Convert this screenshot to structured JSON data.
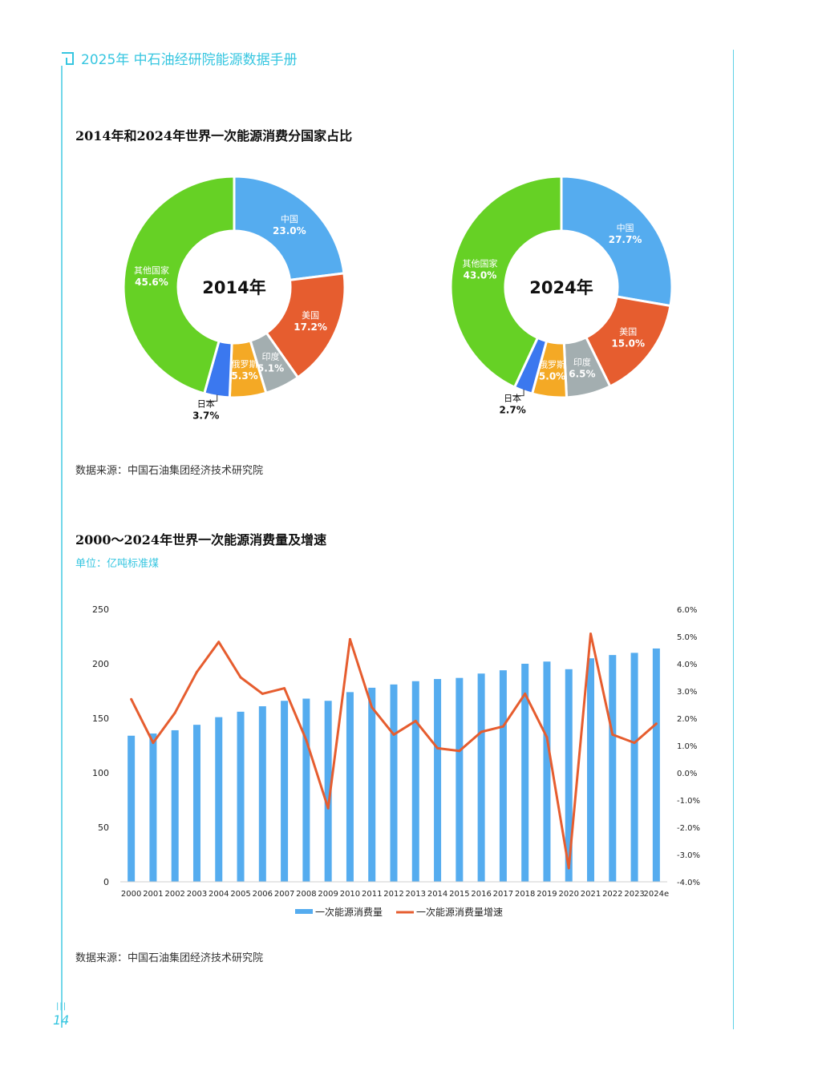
{
  "header": {
    "title": "2025年 中石油经研院能源数据手册"
  },
  "page_number": "14",
  "page_marks": "|||",
  "section1": {
    "title": "2014年和2024年世界一次能源消费分国家占比",
    "source": "数据来源：中国石油集团经济技术研究院"
  },
  "section2": {
    "title": "2000～2024年世界一次能源消费量及增速",
    "unit": "单位：亿吨标准煤",
    "source": "数据来源：中国石油集团经济技术研究院"
  },
  "chart_data": [
    {
      "type": "pie",
      "variant": "donut",
      "center_label": "2014年",
      "labels": [
        "中国",
        "美国",
        "印度",
        "俄罗斯",
        "日本",
        "其他国家"
      ],
      "value_labels": [
        "23.0%",
        "17.2%",
        "5.1%",
        "5.3%",
        "3.7%",
        "45.6%"
      ],
      "values": [
        23.0,
        17.2,
        5.1,
        5.3,
        3.7,
        45.6
      ],
      "colors": [
        "#55acef",
        "#e65d2f",
        "#a3aeb0",
        "#f4a925",
        "#3b78ef",
        "#66d125"
      ]
    },
    {
      "type": "pie",
      "variant": "donut",
      "center_label": "2024年",
      "labels": [
        "中国",
        "美国",
        "印度",
        "俄罗斯",
        "日本",
        "其他国家"
      ],
      "value_labels": [
        "27.7%",
        "15.0%",
        "6.5%",
        "5.0%",
        "2.7%",
        "43.0%"
      ],
      "values": [
        27.7,
        15.0,
        6.5,
        5.0,
        2.7,
        43.0
      ],
      "colors": [
        "#55acef",
        "#e65d2f",
        "#a3aeb0",
        "#f4a925",
        "#3b78ef",
        "#66d125"
      ]
    },
    {
      "type": "bar",
      "combo": "bar+line",
      "categories": [
        "2000",
        "2001",
        "2002",
        "2003",
        "2004",
        "2005",
        "2006",
        "2007",
        "2008",
        "2009",
        "2010",
        "2011",
        "2012",
        "2013",
        "2014",
        "2015",
        "2016",
        "2017",
        "2018",
        "2019",
        "2020",
        "2021",
        "2022",
        "2023",
        "2024e"
      ],
      "series": [
        {
          "name": "一次能源消费量",
          "type": "bar",
          "axis": "left",
          "color": "#55acef",
          "values": [
            134,
            136,
            139,
            144,
            151,
            156,
            161,
            166,
            168,
            166,
            174,
            178,
            181,
            184,
            186,
            187,
            191,
            194,
            200,
            202,
            195,
            205,
            208,
            210,
            214
          ]
        },
        {
          "name": "一次能源消费量增速",
          "type": "line",
          "axis": "right",
          "color": "#e65d2f",
          "values": [
            2.7,
            1.1,
            2.2,
            3.7,
            4.8,
            3.5,
            2.9,
            3.1,
            1.2,
            -1.3,
            4.9,
            2.4,
            1.4,
            1.9,
            0.9,
            0.8,
            1.5,
            1.7,
            2.9,
            1.3,
            -3.5,
            5.1,
            1.4,
            1.1,
            1.8
          ]
        }
      ],
      "y_left": {
        "min": 0,
        "max": 250,
        "ticks": [
          "0",
          "50",
          "100",
          "150",
          "200",
          "250"
        ]
      },
      "y_right": {
        "min": -4.0,
        "max": 6.0,
        "ticks": [
          "-4.0%",
          "-3.0%",
          "-2.0%",
          "-1.0%",
          "0.0%",
          "1.0%",
          "2.0%",
          "3.0%",
          "4.0%",
          "5.0%",
          "6.0%"
        ]
      },
      "legend_position": "bottom",
      "grid": false
    }
  ]
}
